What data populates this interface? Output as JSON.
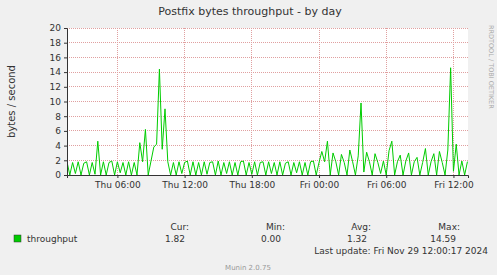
{
  "chart_data": {
    "type": "line",
    "title": "Postfix bytes throughput - by day",
    "y_label": "bytes / second",
    "x": [
      1.5,
      1.75,
      2,
      2.25,
      2.5,
      2.75,
      3,
      3.25,
      3.5,
      3.75,
      4,
      4.25,
      4.5,
      4.75,
      5,
      5.25,
      5.5,
      5.75,
      6,
      6.25,
      6.5,
      6.75,
      7,
      7.25,
      7.5,
      7.75,
      8,
      8.25,
      8.5,
      8.75,
      9,
      9.25,
      9.5,
      9.75,
      10,
      10.25,
      10.5,
      10.75,
      11,
      11.25,
      11.5,
      11.75,
      12,
      12.25,
      12.5,
      12.75,
      13,
      13.25,
      13.5,
      13.75,
      14,
      14.25,
      14.5,
      14.75,
      15,
      15.25,
      15.5,
      15.75,
      16,
      16.25,
      16.5,
      16.75,
      17,
      17.25,
      17.5,
      17.75,
      18,
      18.25,
      18.5,
      18.75,
      19,
      19.25,
      19.5,
      19.75,
      20,
      20.25,
      20.5,
      20.75,
      21,
      21.25,
      21.5,
      21.75,
      22,
      22.25,
      22.5,
      22.75,
      23,
      23.25,
      23.5,
      23.75,
      24,
      24.25,
      24.5,
      24.75,
      25,
      25.25,
      25.5,
      25.75,
      26,
      26.25,
      26.5,
      26.75,
      27,
      27.25,
      27.5,
      27.75,
      28,
      28.25,
      28.5,
      28.75,
      29,
      29.25,
      29.5,
      29.75,
      30,
      30.25,
      30.5,
      30.75,
      31,
      31.25,
      31.5,
      31.75,
      32,
      32.25,
      32.5,
      32.75,
      33,
      33.25,
      33.5,
      33.75,
      34,
      34.25,
      34.5,
      34.75,
      35,
      35.25,
      35.5,
      35.75,
      36,
      36.25,
      36.5,
      36.75,
      37,
      37.25
    ],
    "series": [
      {
        "name": "throughput",
        "color": "#00cc00",
        "values": [
          1.8,
          0,
          1.7,
          0.2,
          1.8,
          0,
          1.6,
          1.8,
          0,
          1.7,
          0.1,
          4.6,
          0,
          1.8,
          0,
          1.7,
          1.9,
          0,
          1.8,
          0.3,
          1.7,
          0,
          1.8,
          0,
          1.7,
          0,
          4.4,
          1.8,
          6.2,
          0,
          1.9,
          3.8,
          4.2,
          14.4,
          3.5,
          9.0,
          1.8,
          0,
          1.7,
          0,
          1.8,
          0.2,
          1.7,
          1.9,
          0,
          1.8,
          0,
          1.7,
          0,
          1.8,
          0.1,
          1.7,
          1.8,
          0,
          1.9,
          0,
          1.7,
          0.2,
          1.8,
          0,
          1.7,
          0,
          1.8,
          1.9,
          0,
          1.7,
          0.1,
          1.8,
          0,
          1.7,
          1.8,
          0,
          1.8,
          0.2,
          1.7,
          0,
          1.8,
          0,
          1.6,
          1.8,
          0,
          1.7,
          0.3,
          1.8,
          0,
          1.7,
          0,
          1.8,
          1.9,
          0,
          1.7,
          3.2,
          1.8,
          4.6,
          0,
          3.0,
          1.8,
          0,
          2.8,
          1.7,
          0,
          3.4,
          1.8,
          0,
          2.6,
          9.8,
          0.4,
          3.1,
          1.8,
          0,
          2.9,
          1.7,
          0.2,
          1.9,
          0,
          3.3,
          4.6,
          0,
          1.8,
          2.7,
          0,
          1.9,
          3.0,
          0,
          1.8,
          2.4,
          0,
          1.7,
          3.6,
          0,
          1.8,
          2.9,
          0,
          3.2,
          1.7,
          0,
          3.4,
          14.59,
          0.5,
          4.2,
          0,
          1.9,
          0,
          1.82
        ]
      }
    ],
    "xlim": [
      1.5,
      37.3
    ],
    "xticks": [
      {
        "value": 6,
        "label": "Thu 06:00"
      },
      {
        "value": 12,
        "label": "Thu 12:00"
      },
      {
        "value": 18,
        "label": "Thu 18:00"
      },
      {
        "value": 24,
        "label": "Fri 00:00"
      },
      {
        "value": 30,
        "label": "Fri 06:00"
      },
      {
        "value": 36,
        "label": "Fri 12:00"
      }
    ],
    "ylim": [
      0,
      20
    ],
    "yticks": [
      0,
      2,
      4,
      6,
      8,
      10,
      12,
      14,
      16,
      18,
      20
    ],
    "grid": true,
    "stats": [
      {
        "label": "Cur:",
        "value": "1.82"
      },
      {
        "label": "Min:",
        "value": "0.00"
      },
      {
        "label": "Avg:",
        "value": "1.32"
      },
      {
        "label": "Max:",
        "value": "14.59"
      }
    ],
    "footer": "Last update: Fri Nov 29 12:00:17 2024",
    "credit": "Munin 2.0.75",
    "watermark": "RRDTOOL / TOBI OETIKER"
  }
}
